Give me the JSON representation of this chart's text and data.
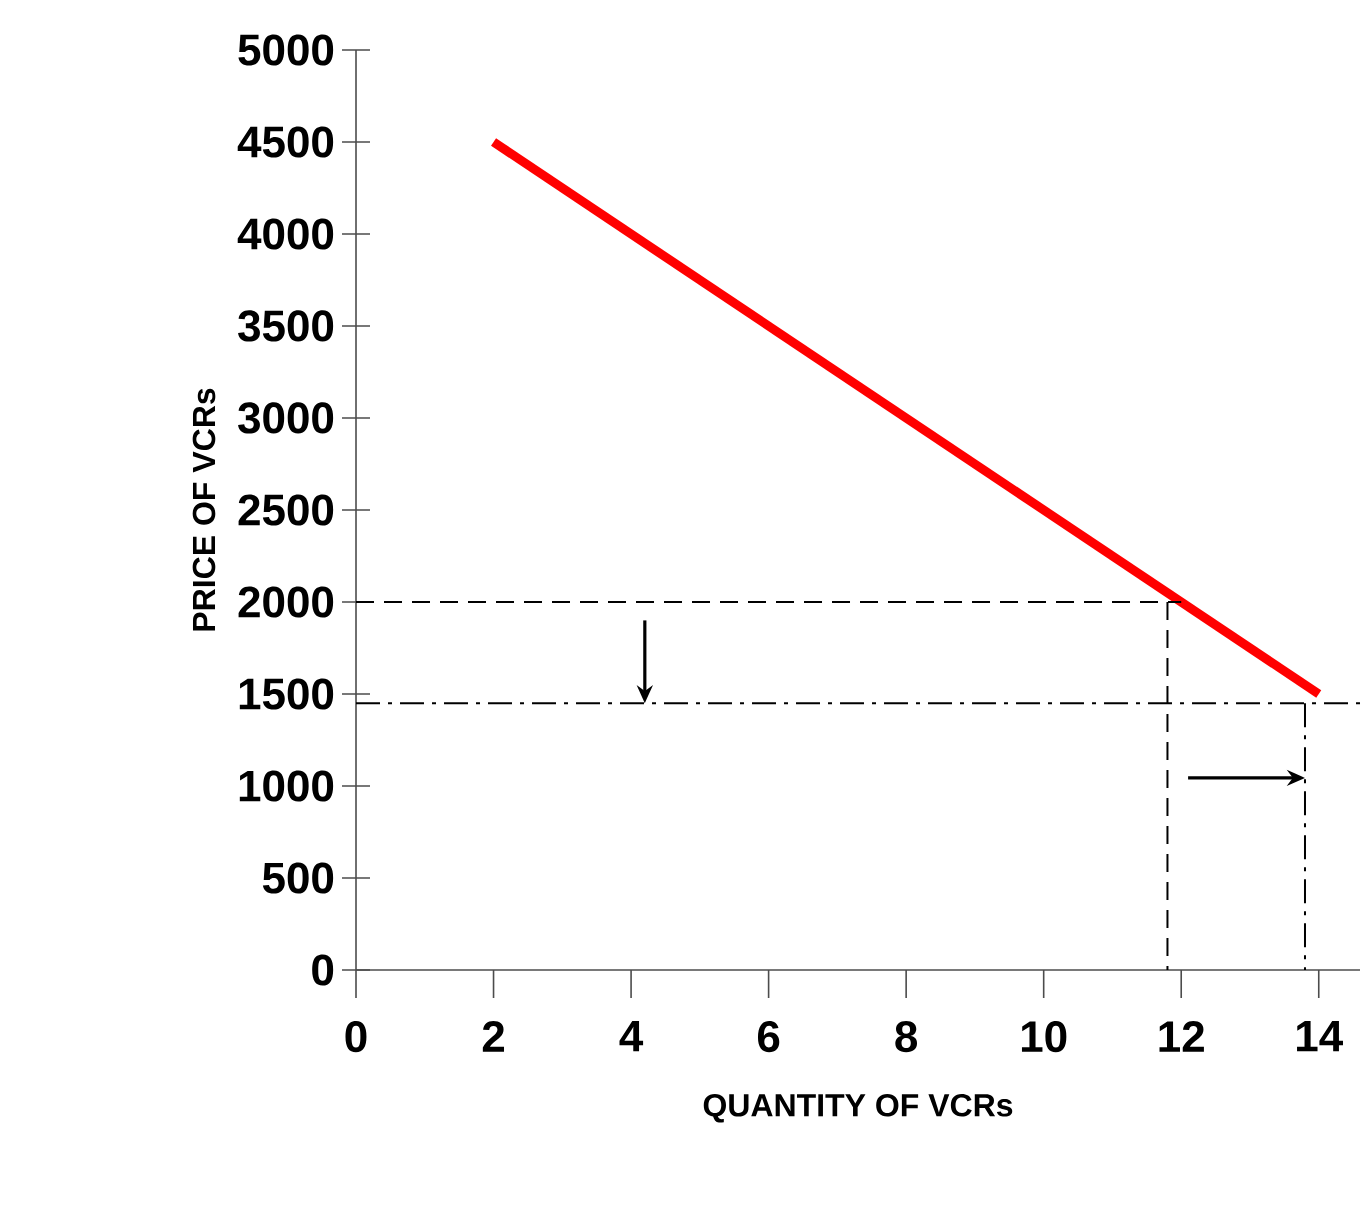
{
  "chart_data": {
    "type": "line",
    "xlabel": "QUANTITY OF VCRs",
    "ylabel": "PRICE OF VCRs",
    "xlim": [
      0,
      14.6
    ],
    "ylim": [
      0,
      5000
    ],
    "xticks": [
      0,
      2,
      4,
      6,
      8,
      10,
      12,
      14
    ],
    "yticks": [
      0,
      500,
      1000,
      1500,
      2000,
      2500,
      3000,
      3500,
      4000,
      4500,
      5000
    ],
    "series": [
      {
        "color": "#ff0000",
        "x": [
          2,
          14
        ],
        "values": [
          4500,
          1500
        ],
        "line_style": "solid"
      },
      {
        "color": "#000000",
        "x": [
          0,
          12
        ],
        "values": [
          2000,
          2000
        ],
        "line_style": "dashed"
      },
      {
        "color": "#000000",
        "x": [
          11.8,
          11.8
        ],
        "values": [
          2000,
          0
        ],
        "line_style": "dashed"
      },
      {
        "color": "#000000",
        "x": [
          0,
          14.6
        ],
        "values": [
          1450,
          1450
        ],
        "line_style": "dashdot"
      },
      {
        "color": "#000000",
        "x": [
          13.8,
          13.8
        ],
        "values": [
          1450,
          0
        ],
        "line_style": "dashdot"
      }
    ]
  }
}
